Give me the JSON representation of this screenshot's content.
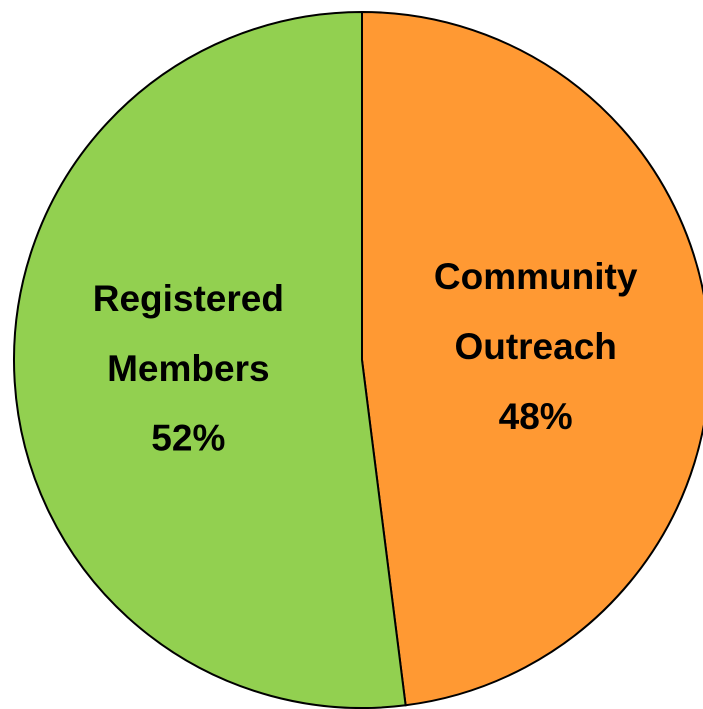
{
  "chart_data": {
    "type": "pie",
    "categories": [
      "Community Outreach",
      "Registered Members"
    ],
    "values": [
      48,
      52
    ],
    "value_labels": [
      "48%",
      "52%"
    ],
    "colors": [
      "#ff9933",
      "#92d050"
    ]
  }
}
